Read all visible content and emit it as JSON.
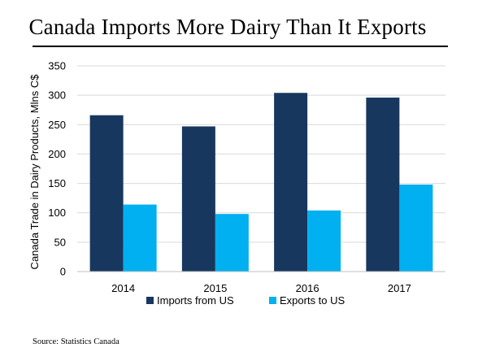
{
  "chart_data": {
    "type": "bar",
    "title": "Canada Imports More Dairy Than It Exports",
    "ylabel": "Canada Trade in Dairy Products, Mlns C$",
    "xlabel": "",
    "categories": [
      "2014",
      "2015",
      "2016",
      "2017"
    ],
    "series": [
      {
        "name": "Imports from US",
        "values": [
          266,
          247,
          304,
          296
        ],
        "color": "#17375e"
      },
      {
        "name": "Exports to US",
        "values": [
          114,
          98,
          104,
          148
        ],
        "color": "#00b0f0"
      }
    ],
    "ylim": [
      0,
      350
    ],
    "yticks": [
      "0",
      "50",
      "100",
      "150",
      "200",
      "250",
      "300",
      "350"
    ],
    "grid": true,
    "legend": "bottom"
  },
  "source": "Source:  Statistics Canada"
}
